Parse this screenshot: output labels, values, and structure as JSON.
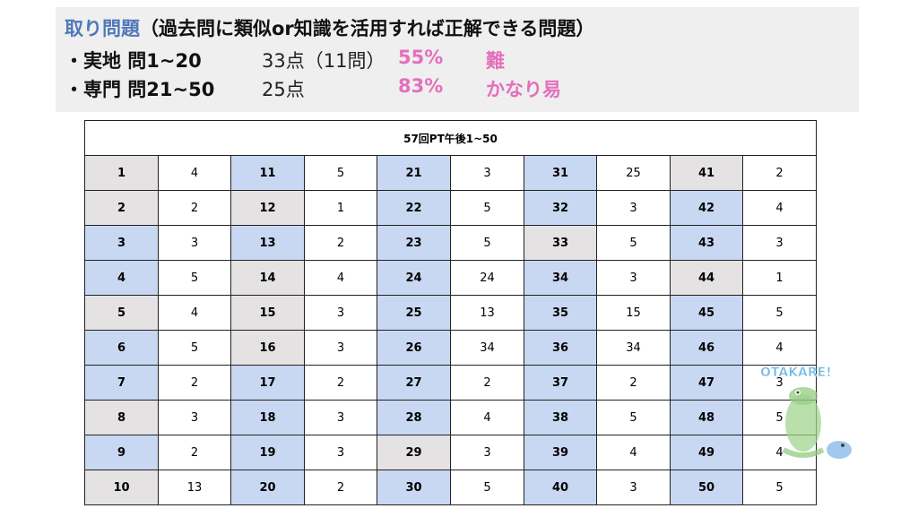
{
  "header": {
    "title": "取り問題",
    "subtitle": "（過去問に類似or知識を活用すれば正解できる問題）",
    "rows": [
      {
        "label": "・実地 問1~20",
        "points": "33点（11問）",
        "rate": "55%",
        "difficulty": "難"
      },
      {
        "label": "・専門 問21~50",
        "points": "25点",
        "rate": "83%",
        "difficulty": "かなり易"
      }
    ]
  },
  "table": {
    "caption": "57回PT午後1~50",
    "rows": [
      [
        {
          "q": "1",
          "a": "4",
          "c": "gray"
        },
        {
          "q": "11",
          "a": "5",
          "c": "blue"
        },
        {
          "q": "21",
          "a": "3",
          "c": "blue"
        },
        {
          "q": "31",
          "a": "25",
          "c": "blue"
        },
        {
          "q": "41",
          "a": "2",
          "c": "gray"
        }
      ],
      [
        {
          "q": "2",
          "a": "2",
          "c": "gray"
        },
        {
          "q": "12",
          "a": "1",
          "c": "gray"
        },
        {
          "q": "22",
          "a": "5",
          "c": "blue"
        },
        {
          "q": "32",
          "a": "3",
          "c": "blue"
        },
        {
          "q": "42",
          "a": "4",
          "c": "blue"
        }
      ],
      [
        {
          "q": "3",
          "a": "3",
          "c": "blue"
        },
        {
          "q": "13",
          "a": "2",
          "c": "blue"
        },
        {
          "q": "23",
          "a": "5",
          "c": "blue"
        },
        {
          "q": "33",
          "a": "5",
          "c": "gray"
        },
        {
          "q": "43",
          "a": "3",
          "c": "blue"
        }
      ],
      [
        {
          "q": "4",
          "a": "5",
          "c": "blue"
        },
        {
          "q": "14",
          "a": "4",
          "c": "gray"
        },
        {
          "q": "24",
          "a": "24",
          "c": "blue"
        },
        {
          "q": "34",
          "a": "3",
          "c": "blue"
        },
        {
          "q": "44",
          "a": "1",
          "c": "gray"
        }
      ],
      [
        {
          "q": "5",
          "a": "4",
          "c": "gray"
        },
        {
          "q": "15",
          "a": "3",
          "c": "gray"
        },
        {
          "q": "25",
          "a": "13",
          "c": "blue"
        },
        {
          "q": "35",
          "a": "15",
          "c": "blue"
        },
        {
          "q": "45",
          "a": "5",
          "c": "blue"
        }
      ],
      [
        {
          "q": "6",
          "a": "5",
          "c": "blue"
        },
        {
          "q": "16",
          "a": "3",
          "c": "gray"
        },
        {
          "q": "26",
          "a": "34",
          "c": "blue"
        },
        {
          "q": "36",
          "a": "34",
          "c": "blue"
        },
        {
          "q": "46",
          "a": "4",
          "c": "blue"
        }
      ],
      [
        {
          "q": "7",
          "a": "2",
          "c": "blue"
        },
        {
          "q": "17",
          "a": "2",
          "c": "blue"
        },
        {
          "q": "27",
          "a": "2",
          "c": "blue"
        },
        {
          "q": "37",
          "a": "2",
          "c": "blue"
        },
        {
          "q": "47",
          "a": "3",
          "c": "blue"
        }
      ],
      [
        {
          "q": "8",
          "a": "3",
          "c": "gray"
        },
        {
          "q": "18",
          "a": "3",
          "c": "blue"
        },
        {
          "q": "28",
          "a": "4",
          "c": "blue"
        },
        {
          "q": "38",
          "a": "5",
          "c": "blue"
        },
        {
          "q": "48",
          "a": "5",
          "c": "blue"
        }
      ],
      [
        {
          "q": "9",
          "a": "2",
          "c": "blue"
        },
        {
          "q": "19",
          "a": "3",
          "c": "blue"
        },
        {
          "q": "29",
          "a": "3",
          "c": "gray"
        },
        {
          "q": "39",
          "a": "4",
          "c": "blue"
        },
        {
          "q": "49",
          "a": "4",
          "c": "blue"
        }
      ],
      [
        {
          "q": "10",
          "a": "13",
          "c": "gray"
        },
        {
          "q": "20",
          "a": "2",
          "c": "blue"
        },
        {
          "q": "30",
          "a": "5",
          "c": "blue"
        },
        {
          "q": "40",
          "a": "3",
          "c": "blue"
        },
        {
          "q": "50",
          "a": "5",
          "c": "blue"
        }
      ]
    ]
  },
  "colors": {
    "title": "#4f78b8",
    "accent": "#e46fbd",
    "blue_cell": "#c9d8f2",
    "gray_cell": "#e4e2e2"
  },
  "mascot": {
    "text": "OTAKARE!",
    "icon": "crocodile-mascot-icon"
  }
}
